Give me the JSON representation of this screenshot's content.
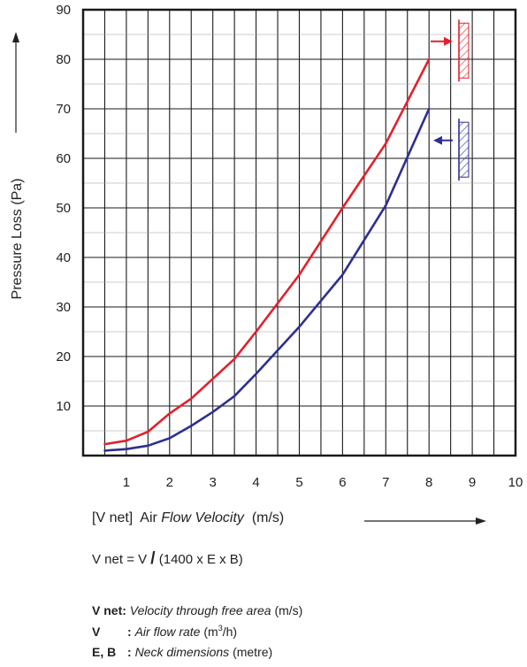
{
  "chart_data": {
    "type": "line",
    "ylabel": "Pressure Loss (Pa)",
    "xlim": [
      0,
      10
    ],
    "ylim": [
      0,
      90
    ],
    "x_ticks": [
      "1",
      "2",
      "3",
      "4",
      "5",
      "6",
      "7",
      "8",
      "9",
      "10"
    ],
    "y_ticks": [
      "10",
      "20",
      "30",
      "40",
      "50",
      "60",
      "70",
      "80",
      "90"
    ],
    "grid": true,
    "series": [
      {
        "color": "#e3202b",
        "x": [
          0.5,
          1,
          1.5,
          2,
          2.5,
          3,
          3.5,
          4,
          5,
          6,
          7,
          8
        ],
        "y": [
          2.3,
          3,
          4.8,
          8.5,
          11.5,
          15.5,
          19.5,
          25,
          36.5,
          50,
          63,
          80
        ]
      },
      {
        "color": "#2e2f8f",
        "x": [
          0.5,
          1,
          1.5,
          2,
          2.5,
          3,
          3.5,
          4,
          5,
          6,
          7,
          8
        ],
        "y": [
          1,
          1.3,
          2,
          3.5,
          6,
          8.8,
          12,
          16.5,
          26,
          36.5,
          50.5,
          70
        ]
      }
    ],
    "markers": [
      {
        "color": "#e3202b",
        "direction": "outward",
        "y_top": 88,
        "y_bottom": 75.5
      },
      {
        "color": "#2e2f8f",
        "direction": "inward",
        "y_top": 68,
        "y_bottom": 55.5
      }
    ]
  },
  "xlabel": {
    "prefix": "[V net]",
    "plain": "Air ",
    "italic": "Flow Velocity",
    "unit": "(m/s)"
  },
  "formula": {
    "lhs": "V net = V",
    "slash": "/",
    "rhs": "(1400 x E x B)"
  },
  "legend": {
    "vnet_term": "V net:",
    "vnet_desc": "Velocity through free area",
    "vnet_unit": "(m/s)",
    "v_term": "V",
    "v_colon": ":",
    "v_desc": "Air flow rate",
    "v_unit_pre": "(m",
    "v_unit_sup": "3",
    "v_unit_post": "/h)",
    "eb_term": "E, B",
    "eb_colon": ":",
    "eb_desc": "Neck dimensions",
    "eb_unit": "(metre)"
  }
}
